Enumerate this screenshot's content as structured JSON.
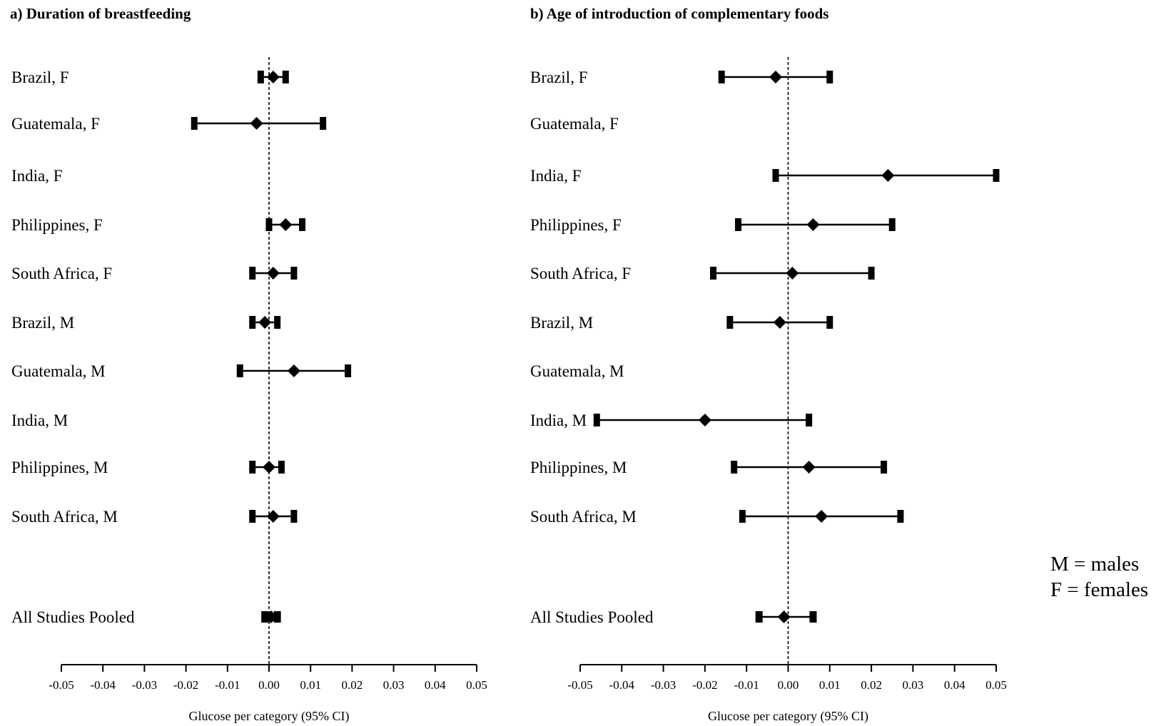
{
  "legend": [
    "M = males",
    "F = females"
  ],
  "chart_data": [
    {
      "type": "forest",
      "title": "a) Duration of breastfeeding",
      "xlabel": "Glucose per category (95% CI)",
      "xlim": [
        -0.05,
        0.05
      ],
      "xticks": [
        "-0.05",
        "-0.04",
        "-0.03",
        "-0.02",
        "-0.01",
        "0.00",
        "0.01",
        "0.02",
        "0.03",
        "0.04",
        "0.05"
      ],
      "reference_line": 0.0,
      "rows": [
        {
          "label": "Brazil, F",
          "estimate": 0.001,
          "lower": -0.002,
          "upper": 0.004
        },
        {
          "label": "Guatemala, F",
          "estimate": -0.003,
          "lower": -0.018,
          "upper": 0.013
        },
        {
          "label": "India, F",
          "estimate": null,
          "lower": null,
          "upper": null
        },
        {
          "label": "Philippines, F",
          "estimate": 0.004,
          "lower": 0.0,
          "upper": 0.008
        },
        {
          "label": "South Africa, F",
          "estimate": 0.001,
          "lower": -0.004,
          "upper": 0.006
        },
        {
          "label": "Brazil, M",
          "estimate": -0.001,
          "lower": -0.004,
          "upper": 0.002
        },
        {
          "label": "Guatemala, M",
          "estimate": 0.006,
          "lower": -0.007,
          "upper": 0.019
        },
        {
          "label": "India, M",
          "estimate": null,
          "lower": null,
          "upper": null
        },
        {
          "label": "Philippines, M",
          "estimate": 0.0,
          "lower": -0.004,
          "upper": 0.003
        },
        {
          "label": "South Africa, M",
          "estimate": 0.001,
          "lower": -0.004,
          "upper": 0.006
        },
        {
          "label": "All Studies Pooled",
          "estimate": 0.0005,
          "lower": -0.001,
          "upper": 0.002
        }
      ]
    },
    {
      "type": "forest",
      "title": "b) Age of introduction of complementary foods",
      "xlabel": "Glucose per category (95% CI)",
      "xlim": [
        -0.05,
        0.05
      ],
      "xticks": [
        "-0.05",
        "-0.04",
        "-0.03",
        "-0.02",
        "-0.01",
        "0.00",
        "0.01",
        "0.02",
        "0.03",
        "0.04",
        "0.05"
      ],
      "reference_line": 0.0,
      "rows": [
        {
          "label": "Brazil, F",
          "estimate": -0.003,
          "lower": -0.016,
          "upper": 0.01
        },
        {
          "label": "Guatemala, F",
          "estimate": null,
          "lower": null,
          "upper": null
        },
        {
          "label": "India, F",
          "estimate": 0.024,
          "lower": -0.003,
          "upper": 0.05
        },
        {
          "label": "Philippines, F",
          "estimate": 0.006,
          "lower": -0.012,
          "upper": 0.025
        },
        {
          "label": "South Africa, F",
          "estimate": 0.001,
          "lower": -0.018,
          "upper": 0.02
        },
        {
          "label": "Brazil, M",
          "estimate": -0.002,
          "lower": -0.014,
          "upper": 0.01
        },
        {
          "label": "Guatemala, M",
          "estimate": null,
          "lower": null,
          "upper": null
        },
        {
          "label": "India, M",
          "estimate": -0.02,
          "lower": -0.046,
          "upper": 0.005
        },
        {
          "label": "Philippines, M",
          "estimate": 0.005,
          "lower": -0.013,
          "upper": 0.023
        },
        {
          "label": "South Africa, M",
          "estimate": 0.008,
          "lower": -0.011,
          "upper": 0.027
        },
        {
          "label": "All Studies Pooled",
          "estimate": -0.001,
          "lower": -0.007,
          "upper": 0.006
        }
      ]
    }
  ]
}
